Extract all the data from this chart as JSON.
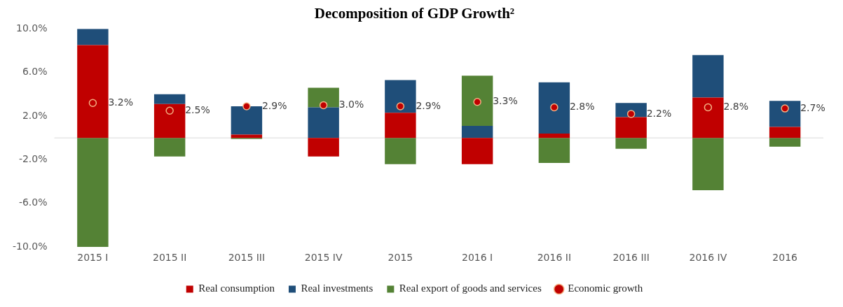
{
  "chart_data": {
    "type": "bar",
    "title": "Decomposition of GDP Growth²",
    "categories": [
      "2015 I",
      "2015 II",
      "2015 III",
      "2015 IV",
      "2015",
      "2016 I",
      "2016 II",
      "2016 III",
      "2016 IV",
      "2016"
    ],
    "stacked": true,
    "series": [
      {
        "name": "Real consumption",
        "color": "#c00000",
        "values": [
          8.5,
          3.1,
          0.3,
          -1.7,
          2.3,
          -2.4,
          0.4,
          1.9,
          3.7,
          1.0
        ]
      },
      {
        "name": "Real investments",
        "color": "#1f4e79",
        "values": [
          1.5,
          0.9,
          2.6,
          2.8,
          3.0,
          1.1,
          4.7,
          1.3,
          3.9,
          2.4
        ]
      },
      {
        "name": "Real export of goods and services",
        "color": "#548235",
        "values": [
          -10.0,
          -1.7,
          -0.1,
          1.8,
          -2.4,
          4.6,
          -2.3,
          -1.0,
          -4.8,
          -0.8
        ]
      },
      {
        "name": "Economic growth",
        "type": "scatter",
        "color": "#c00000",
        "marker": "circle",
        "values": [
          3.2,
          2.5,
          2.9,
          3.0,
          2.9,
          3.3,
          2.8,
          2.2,
          2.8,
          2.7
        ],
        "value_labels": [
          "3.2%",
          "2.5%",
          "2.9%",
          "3.0%",
          "2.9%",
          "3.3%",
          "2.8%",
          "2.2%",
          "2.8%",
          "2.7%"
        ]
      }
    ],
    "ylim": [
      -10,
      10
    ],
    "yticks": [
      {
        "value": -10,
        "label": "-10.0%"
      },
      {
        "value": -6,
        "label": "-6.0%"
      },
      {
        "value": -2,
        "label": "-2.0%"
      },
      {
        "value": 2,
        "label": "2.0%"
      },
      {
        "value": 6,
        "label": "6.0%"
      },
      {
        "value": 10,
        "label": "10.0%"
      }
    ],
    "ref_lines": [
      {
        "axis": "y",
        "value": 0,
        "color": "#d9d9d9"
      }
    ],
    "grid": false,
    "legend": "bottom"
  }
}
